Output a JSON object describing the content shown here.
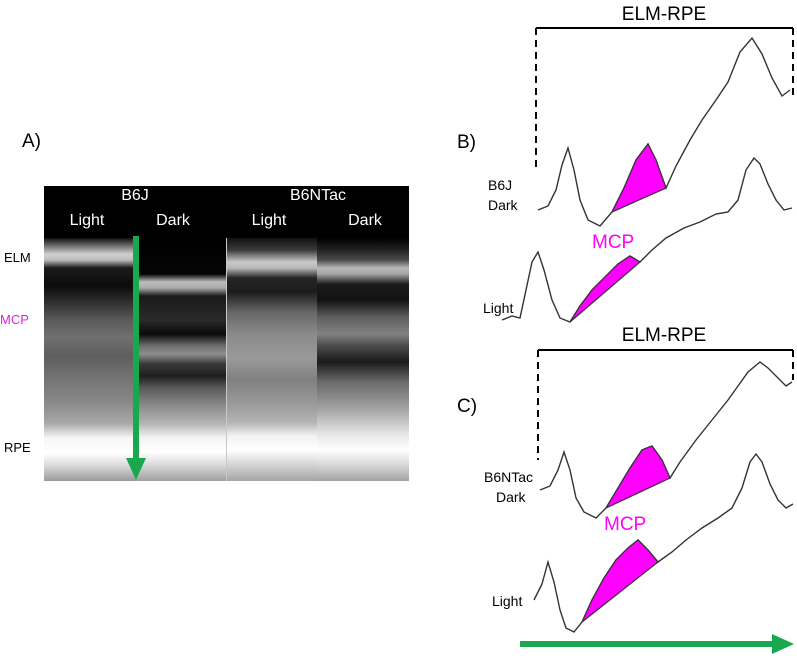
{
  "panel_a": {
    "letter": "A)",
    "headers": {
      "b6j": "B6J",
      "b6ntac": "B6NTac"
    },
    "columns": [
      "Light",
      "Dark",
      "Light",
      "Dark"
    ],
    "layer_labels": {
      "elm": "ELM",
      "mcp": "MCP",
      "rpe": "RPE"
    }
  },
  "panel_b": {
    "letter": "B)",
    "bracket_label": "ELM-RPE",
    "dark_label_1": "B6J",
    "dark_label_2": "Dark",
    "light_label": "Light",
    "mcp_label": "MCP"
  },
  "panel_c": {
    "letter": "C)",
    "bracket_label": "ELM-RPE",
    "dark_label_1": "B6NTac",
    "dark_label_2": "Dark",
    "light_label": "Light",
    "mcp_label": "MCP"
  },
  "colors": {
    "mcp": "#ff00ff",
    "arrow": "#1aa84f",
    "image_bg": "#000000"
  }
}
